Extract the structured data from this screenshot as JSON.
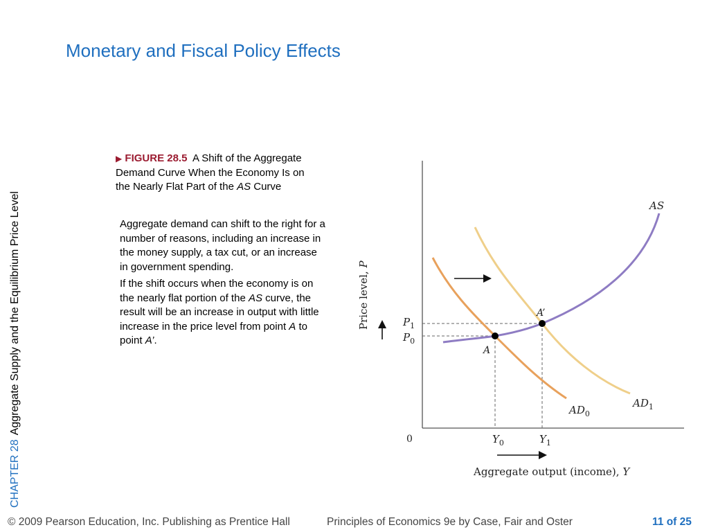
{
  "slide": {
    "title": "Monetary and Fiscal Policy Effects"
  },
  "side_label": {
    "chapter": "CHAPTER 28",
    "chapter_title": "Aggregate Supply and the Equilibrium Price Level"
  },
  "figure": {
    "label": "FIGURE 28.5",
    "title_part1": "A Shift of the Aggregate Demand Curve When the Economy Is on the Nearly Flat Part of the ",
    "title_italic": "AS",
    "title_part2": " Curve"
  },
  "description": {
    "p1": "Aggregate demand can shift to the right for a number of reasons, including an increase in the money supply, a tax cut, or an increase in government spending.",
    "p2_a": "If the shift occurs when the economy is on the nearly flat portion of the ",
    "p2_as": "AS",
    "p2_b": " curve, the result will be an increase in output with little increase in the price level from point ",
    "p2_point_a": "A",
    "p2_c": " to point ",
    "p2_point_a_prime": "A’",
    "p2_end": "."
  },
  "graph": {
    "y_axis_label": "Price level, ",
    "y_axis_var": "P",
    "x_axis_label": "Aggregate output (income), ",
    "x_axis_var": "Y",
    "origin": "0",
    "as_label": "AS",
    "ad0_label": "AD",
    "ad0_sub": "0",
    "ad1_label": "AD",
    "ad1_sub": "1",
    "point_a": "A",
    "point_a_prime": "A’",
    "p1_label": "P",
    "p1_sub": "1",
    "p0_label": "P",
    "p0_sub": "0",
    "y0_label": "Y",
    "y0_sub": "0",
    "y1_label": "Y",
    "y1_sub": "1",
    "colors": {
      "as_curve": "#8e7cc3",
      "ad0_curve": "#e8a15c",
      "ad1_curve": "#efcf8a",
      "axes": "#555555"
    }
  },
  "footer": {
    "copyright": "© 2009 Pearson Education, Inc. Publishing as Prentice Hall",
    "book": "Principles of Economics 9e by Case, Fair and Oster",
    "page_current": "11",
    "page_of": "of",
    "page_total": "25"
  }
}
